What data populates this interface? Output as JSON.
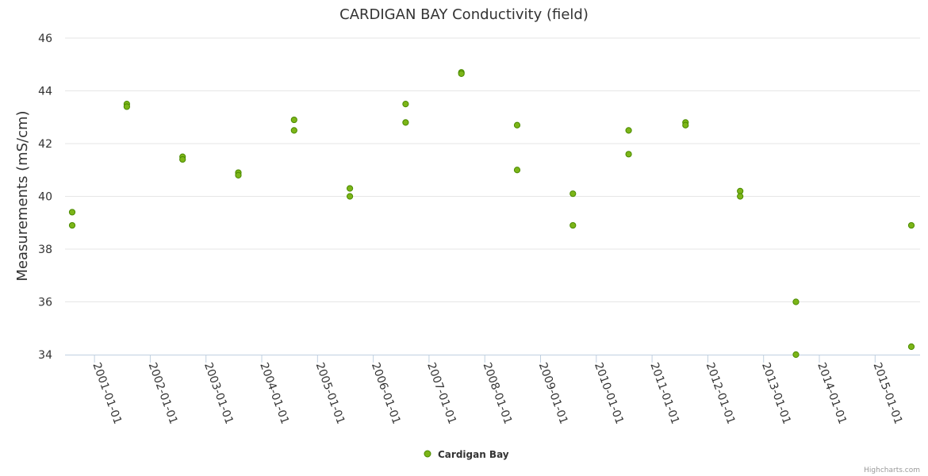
{
  "chart_data": {
    "type": "scatter",
    "title": "CARDIGAN BAY Conductivity (field)",
    "xlabel": "",
    "ylabel": "Measurements (mS/cm)",
    "ylim": [
      34,
      46
    ],
    "yticks": [
      "34",
      "36",
      "38",
      "40",
      "42",
      "44",
      "46"
    ],
    "xticks": [
      "2001-01-01",
      "2002-01-01",
      "2003-01-01",
      "2004-01-01",
      "2005-01-01",
      "2006-01-01",
      "2007-01-01",
      "2008-01-01",
      "2009-01-01",
      "2010-01-01",
      "2011-01-01",
      "2012-01-01",
      "2013-01-01",
      "2014-01-01",
      "2015-01-01"
    ],
    "xrange_year": [
      2000.6,
      2015.65
    ],
    "series": [
      {
        "name": "Cardigan Bay",
        "color": "#7cb518",
        "points": [
          {
            "x": 2000.6,
            "y": 39.4
          },
          {
            "x": 2000.6,
            "y": 38.9
          },
          {
            "x": 2001.58,
            "y": 43.5
          },
          {
            "x": 2001.58,
            "y": 43.4
          },
          {
            "x": 2002.58,
            "y": 41.5
          },
          {
            "x": 2002.58,
            "y": 41.4
          },
          {
            "x": 2003.58,
            "y": 40.9
          },
          {
            "x": 2003.58,
            "y": 40.8
          },
          {
            "x": 2004.58,
            "y": 42.9
          },
          {
            "x": 2004.58,
            "y": 42.5
          },
          {
            "x": 2005.58,
            "y": 40.3
          },
          {
            "x": 2005.58,
            "y": 40.0
          },
          {
            "x": 2006.58,
            "y": 43.5
          },
          {
            "x": 2006.58,
            "y": 42.8
          },
          {
            "x": 2007.58,
            "y": 44.7
          },
          {
            "x": 2007.58,
            "y": 44.65
          },
          {
            "x": 2008.58,
            "y": 42.7
          },
          {
            "x": 2008.58,
            "y": 41.0
          },
          {
            "x": 2009.58,
            "y": 40.1
          },
          {
            "x": 2009.58,
            "y": 38.9
          },
          {
            "x": 2010.58,
            "y": 42.5
          },
          {
            "x": 2010.58,
            "y": 41.6
          },
          {
            "x": 2011.6,
            "y": 42.8
          },
          {
            "x": 2011.6,
            "y": 42.7
          },
          {
            "x": 2012.58,
            "y": 40.2
          },
          {
            "x": 2012.58,
            "y": 40.0
          },
          {
            "x": 2013.58,
            "y": 36.0
          },
          {
            "x": 2013.58,
            "y": 34.0
          },
          {
            "x": 2015.65,
            "y": 38.9
          },
          {
            "x": 2015.65,
            "y": 34.3
          }
        ]
      }
    ],
    "legend": "bottom-center",
    "credit": "Highcharts.com"
  }
}
